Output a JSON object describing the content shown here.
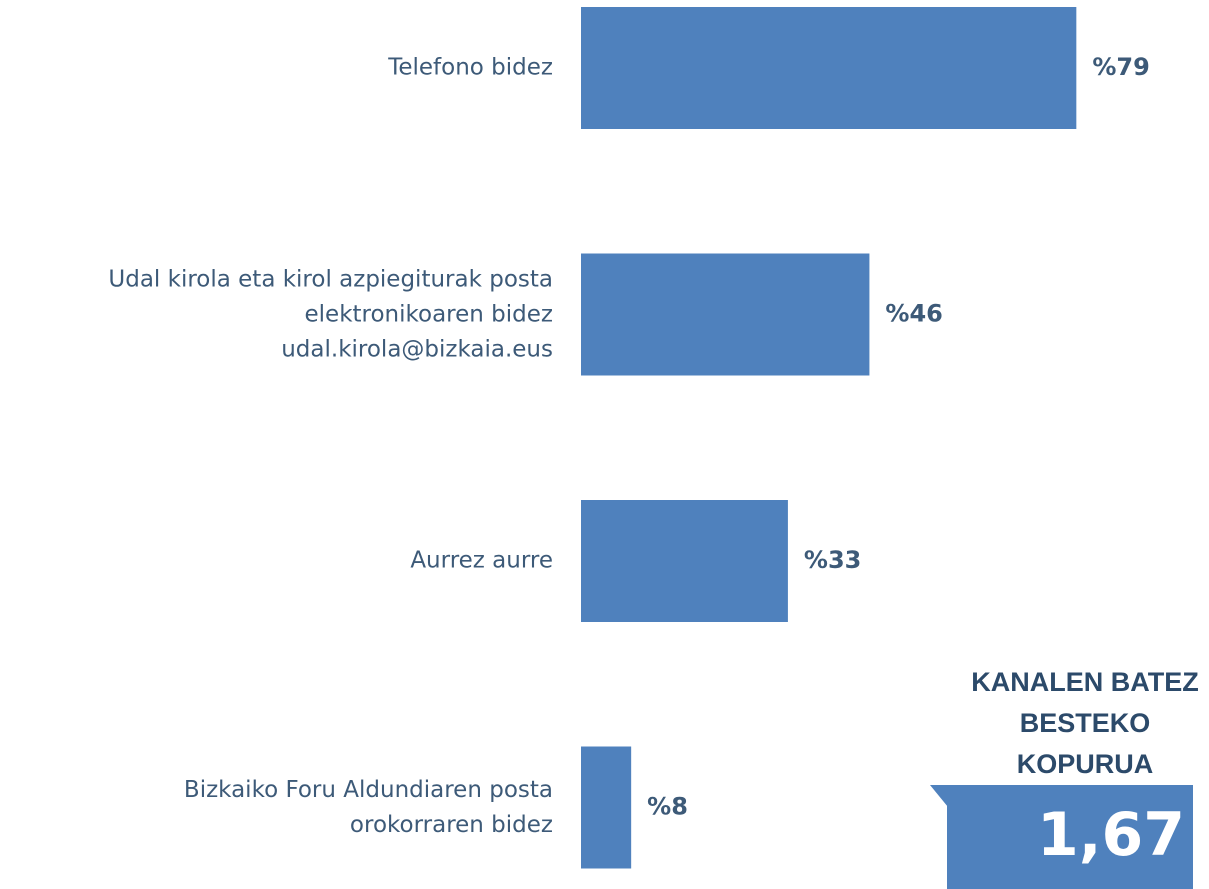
{
  "chart_data": {
    "type": "bar",
    "orientation": "horizontal",
    "categories": [
      "Telefono bidez",
      "Udal kirola eta kirol azpiegiturak posta\nelektronikoaren bidez\nudal.kirola@bizkaia.eus",
      "Aurrez aurre",
      "Bizkaiko Foru Aldundiaren posta\norokorraren bidez"
    ],
    "values": [
      79,
      46,
      33,
      8
    ],
    "value_labels": [
      "%79",
      "%46",
      "%33",
      "%8"
    ],
    "color": "#4f81bd",
    "annotations": [
      "KANALEN BATEZ\nBESTEKO\nKOPURUA",
      "1,67"
    ]
  }
}
